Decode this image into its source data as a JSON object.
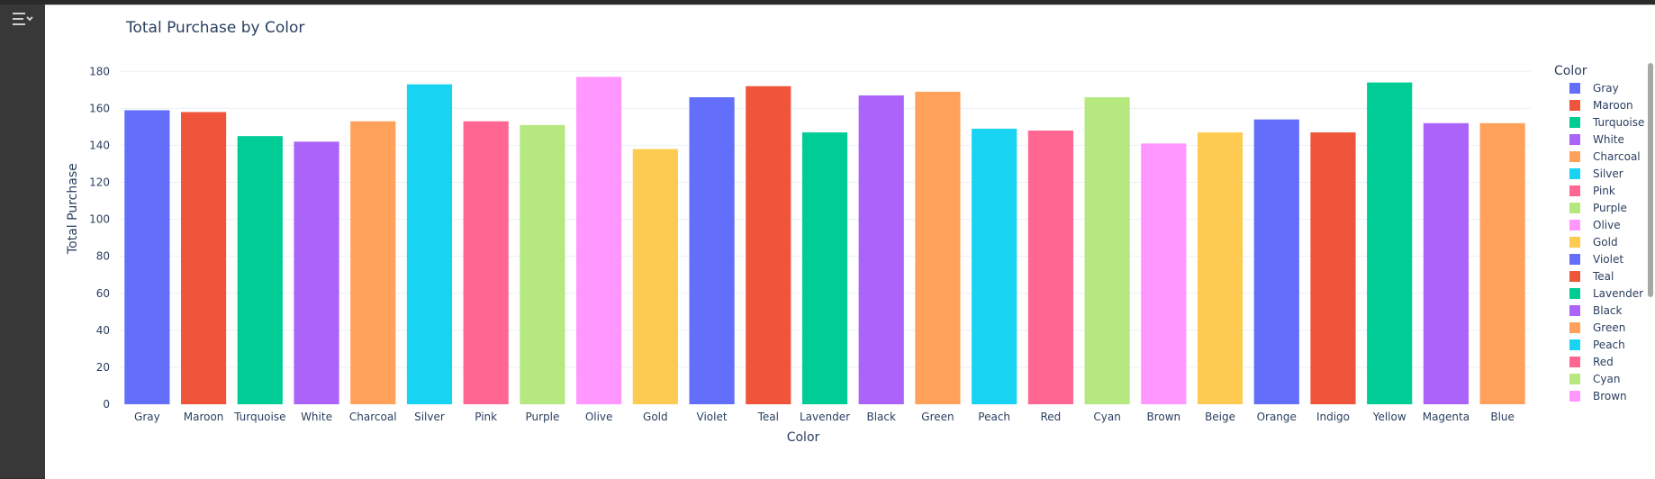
{
  "toolbar": {
    "toggle_icon": "sidebar-toggle-icon"
  },
  "chart_data": {
    "type": "bar",
    "title": "Total Purchase by Color",
    "xlabel": "Color",
    "ylabel": "Total Purchase",
    "ylim": [
      0,
      185
    ],
    "yticks": [
      0,
      20,
      40,
      60,
      80,
      100,
      120,
      140,
      160,
      180
    ],
    "grid": true,
    "legend": {
      "title": "Color",
      "placement": "right"
    },
    "categories": [
      "Gray",
      "Maroon",
      "Turquoise",
      "White",
      "Charcoal",
      "Silver",
      "Pink",
      "Purple",
      "Olive",
      "Gold",
      "Violet",
      "Teal",
      "Lavender",
      "Black",
      "Green",
      "Peach",
      "Red",
      "Cyan",
      "Brown",
      "Beige",
      "Orange",
      "Indigo",
      "Yellow",
      "Magenta",
      "Blue"
    ],
    "values": [
      159,
      158,
      145,
      142,
      153,
      173,
      153,
      151,
      177,
      138,
      166,
      172,
      147,
      167,
      169,
      149,
      148,
      166,
      141,
      147,
      154,
      147,
      174,
      152,
      152
    ],
    "colors": [
      "#636efa",
      "#EF553B",
      "#00cc96",
      "#ab63fa",
      "#FFA15A",
      "#19d3f3",
      "#FF6692",
      "#B6E880",
      "#FF97FF",
      "#FECB52",
      "#636efa",
      "#EF553B",
      "#00cc96",
      "#ab63fa",
      "#FFA15A",
      "#19d3f3",
      "#FF6692",
      "#B6E880",
      "#FF97FF",
      "#FECB52",
      "#636efa",
      "#EF553B",
      "#00cc96",
      "#ab63fa",
      "#FFA15A"
    ],
    "legend_visible_count": 19
  }
}
